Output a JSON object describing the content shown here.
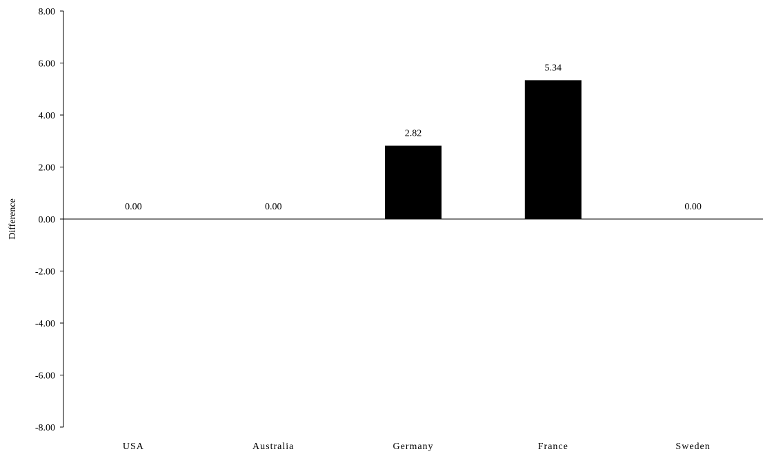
{
  "chart_data": {
    "type": "bar",
    "categories": [
      "USA",
      "Australia",
      "Germany",
      "France",
      "Sweden"
    ],
    "values": [
      0.0,
      0.0,
      2.82,
      5.34,
      0.0
    ],
    "data_labels": [
      "0.00",
      "0.00",
      "2.82",
      "5.34",
      "0.00"
    ],
    "title": "",
    "xlabel": "",
    "ylabel": "Difference",
    "ylim": [
      -8,
      8
    ],
    "yticks": [
      8,
      6,
      4,
      2,
      0,
      -2,
      -4,
      -6,
      -8
    ],
    "ytick_labels": [
      "8.00",
      "6.00",
      "4.00",
      "2.00",
      "0.00",
      "-2.00",
      "-4.00",
      "-6.00",
      "-8.00"
    ],
    "bar_color": "#000000",
    "grid": false,
    "legend": "none"
  }
}
